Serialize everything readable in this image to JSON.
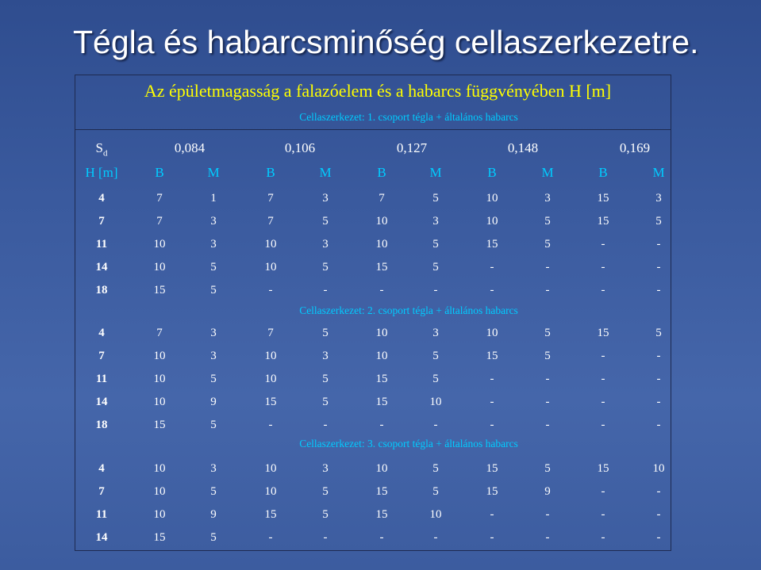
{
  "title": "Tégla és habarcsminőség cellaszerkezetre.",
  "subtitle": "Az épületmagasság a falazóelem és a habarcs függvényében H [m]",
  "sd_label": "S",
  "sd_sub": "d",
  "sd_values": [
    "0,084",
    "0,106",
    "0,127",
    "0,148",
    "0,169"
  ],
  "header": [
    "H [m]",
    "B",
    "M",
    "B",
    "M",
    "B",
    "M",
    "B",
    "M",
    "B",
    "M"
  ],
  "groups": [
    {
      "label": "Cellaszerkezet: 1. csoport tégla + általános habarcs",
      "rows": [
        [
          "4",
          "7",
          "1",
          "7",
          "3",
          "7",
          "5",
          "10",
          "3",
          "15",
          "3"
        ],
        [
          "7",
          "7",
          "3",
          "7",
          "5",
          "10",
          "3",
          "10",
          "5",
          "15",
          "5"
        ],
        [
          "11",
          "10",
          "3",
          "10",
          "3",
          "10",
          "5",
          "15",
          "5",
          "-",
          "-"
        ],
        [
          "14",
          "10",
          "5",
          "10",
          "5",
          "15",
          "5",
          "-",
          "-",
          "-",
          "-"
        ],
        [
          "18",
          "15",
          "5",
          "-",
          "-",
          "-",
          "-",
          "-",
          "-",
          "-",
          "-"
        ]
      ]
    },
    {
      "label": "Cellaszerkezet: 2. csoport tégla + általános habarcs",
      "rows": [
        [
          "4",
          "7",
          "3",
          "7",
          "5",
          "10",
          "3",
          "10",
          "5",
          "15",
          "5"
        ],
        [
          "7",
          "10",
          "3",
          "10",
          "3",
          "10",
          "5",
          "15",
          "5",
          "-",
          "-"
        ],
        [
          "11",
          "10",
          "5",
          "10",
          "5",
          "15",
          "5",
          "-",
          "-",
          "-",
          "-"
        ],
        [
          "14",
          "10",
          "9",
          "15",
          "5",
          "15",
          "10",
          "-",
          "-",
          "-",
          "-"
        ],
        [
          "18",
          "15",
          "5",
          "-",
          "-",
          "-",
          "-",
          "-",
          "-",
          "-",
          "-"
        ]
      ]
    },
    {
      "label": "Cellaszerkezet: 3. csoport tégla + általános habarcs",
      "rows": [
        [
          "4",
          "10",
          "3",
          "10",
          "3",
          "10",
          "5",
          "15",
          "5",
          "15",
          "10"
        ],
        [
          "7",
          "10",
          "5",
          "10",
          "5",
          "15",
          "5",
          "15",
          "9",
          "-",
          "-"
        ],
        [
          "11",
          "10",
          "9",
          "15",
          "5",
          "15",
          "10",
          "-",
          "-",
          "-",
          "-"
        ],
        [
          "14",
          "15",
          "5",
          "-",
          "-",
          "-",
          "-",
          "-",
          "-",
          "-",
          "-"
        ]
      ]
    }
  ]
}
